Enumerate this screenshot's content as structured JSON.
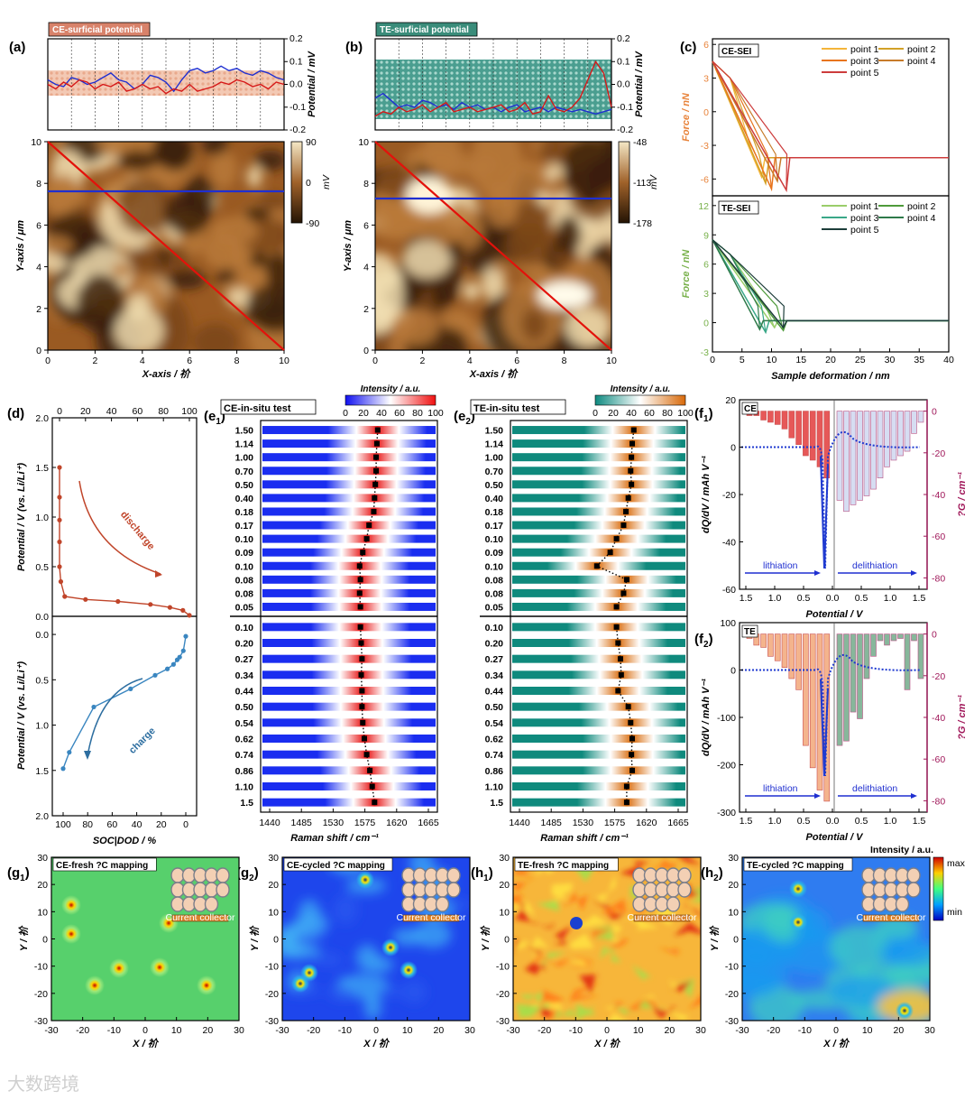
{
  "panels": {
    "a": "(a)",
    "b": "(b)",
    "c": "(c)",
    "d": "(d)",
    "e1": "(e",
    "e1s": "1",
    "e2": "(e",
    "e2s": "2",
    "f1": "(f",
    "f1s": "1",
    "f2": "(f",
    "f2s": "2",
    "g1": "(g",
    "g1s": "1",
    "g2": "(g",
    "g2s": "2",
    "h1": "(h",
    "h1s": "1",
    "h2": "(h",
    "h2s": "2"
  },
  "colors": {
    "ce": "#e8833a",
    "te": "#79b14c",
    "blue": "#1f2fd0",
    "red": "#d61818",
    "maroon": "#a0185a"
  },
  "chart_data": [
    {
      "id": "a",
      "type": "line",
      "tag": "CE-surficial potential",
      "ylabel": "Potential / mV",
      "ylim": [
        -0.2,
        0.2
      ],
      "yticks": [
        "0.2",
        "0.1",
        "0.0",
        "-0.1",
        "-0.2"
      ],
      "map": {
        "xlabel": "X-axis / 祄",
        "ylabel": "Y-axis / μm",
        "xticks": [
          "0",
          "2",
          "4",
          "6",
          "8",
          "10"
        ],
        "yticks": [
          "10",
          "8",
          "6",
          "4",
          "2",
          "0"
        ],
        "colorbar": {
          "unit": "mV",
          "labels": [
            "90",
            "0",
            "-90"
          ]
        }
      },
      "series": [
        {
          "name": "blue",
          "values": [
            0.02,
            0.0,
            -0.01,
            0.03,
            0.02,
            0.0,
            0.01,
            0.03,
            0.05,
            0.02,
            0.01,
            -0.02,
            0.0,
            0.04,
            0.03,
            0.01,
            -0.03,
            0.02,
            0.06,
            0.07,
            0.05,
            0.06,
            0.08,
            0.06,
            0.07,
            0.05,
            0.04,
            0.06,
            0.05,
            0.03,
            0.02
          ]
        },
        {
          "name": "red",
          "values": [
            0.0,
            -0.02,
            0.01,
            -0.01,
            0.02,
            0.01,
            -0.02,
            0.0,
            -0.01,
            0.01,
            -0.03,
            -0.02,
            0.0,
            -0.02,
            -0.01,
            -0.04,
            -0.02,
            -0.03,
            0.0,
            -0.03,
            -0.02,
            -0.01,
            0.01,
            0.0,
            0.02,
            0.01,
            -0.01,
            0.0,
            -0.02,
            0.01,
            0.0
          ]
        }
      ]
    },
    {
      "id": "b",
      "type": "line",
      "tag": "TE-surficial potential",
      "ylabel": "Potential / mV",
      "ylim": [
        -0.2,
        0.2
      ],
      "yticks": [
        "0.2",
        "0.1",
        "0.0",
        "-0.1",
        "-0.2"
      ],
      "map": {
        "xlabel": "X-axis / 祄",
        "ylabel": "Y-axis / μm",
        "xticks": [
          "0",
          "2",
          "4",
          "6",
          "8",
          "10"
        ],
        "yticks": [
          "10",
          "8",
          "6",
          "4",
          "2",
          "0"
        ],
        "colorbar": {
          "unit": "mV",
          "labels": [
            "-48",
            "-113",
            "-178"
          ]
        }
      },
      "series": [
        {
          "name": "blue",
          "values": [
            -0.06,
            -0.04,
            -0.07,
            -0.1,
            -0.09,
            -0.1,
            -0.07,
            -0.08,
            -0.1,
            -0.09,
            -0.11,
            -0.08,
            -0.1,
            -0.09,
            -0.11,
            -0.1,
            -0.12,
            -0.1,
            -0.09,
            -0.12,
            -0.11,
            -0.1,
            -0.12,
            -0.1,
            -0.11,
            -0.12,
            -0.11,
            -0.12,
            -0.13,
            -0.12,
            -0.11
          ]
        },
        {
          "name": "red",
          "values": [
            -0.14,
            -0.12,
            -0.13,
            -0.1,
            -0.12,
            -0.11,
            -0.09,
            -0.12,
            -0.1,
            -0.08,
            -0.12,
            -0.11,
            -0.1,
            -0.12,
            -0.11,
            -0.1,
            -0.09,
            -0.12,
            -0.11,
            -0.08,
            -0.13,
            -0.12,
            -0.05,
            -0.11,
            -0.12,
            -0.1,
            -0.06,
            0.02,
            0.1,
            0.05,
            -0.1
          ]
        }
      ]
    },
    {
      "id": "c",
      "type": "line",
      "xlabel": "Sample deformation / nm",
      "xlim": [
        0,
        40
      ],
      "xticks": [
        "0",
        "5",
        "10",
        "15",
        "20",
        "25",
        "30",
        "35",
        "40"
      ],
      "top": {
        "tag": "CE-SEI",
        "ylabel": "Force / nN",
        "yticks": [
          "6",
          "3",
          "0",
          "-3",
          "-6"
        ],
        "ylim": [
          -7.5,
          6.5
        ],
        "legend": [
          "point 1",
          "point 2",
          "point 3",
          "point 4",
          "point 5"
        ],
        "dips": [
          8.3,
          9.0,
          10.0,
          11.0,
          12.5
        ],
        "mins": [
          -5.8,
          -6.4,
          -6.9,
          -6.2,
          -7.0
        ]
      },
      "bottom": {
        "tag": "TE-SEI",
        "ylabel": "Force / nN",
        "yticks": [
          "12",
          "9",
          "6",
          "3",
          "0",
          "-3"
        ],
        "ylim": [
          -3,
          13
        ],
        "legend": [
          "point 1",
          "point 2",
          "point 3",
          "point 4",
          "point 5"
        ],
        "dips": [
          10.5,
          12.0,
          9.0,
          8.0,
          12.0
        ],
        "mins": [
          -0.5,
          -0.8,
          -1.0,
          -0.7,
          -0.5
        ]
      }
    },
    {
      "id": "d",
      "type": "line",
      "xlabel": "SOC|DOD / %",
      "ylabel": "Potential / V (vs. Li/Li⁺)",
      "top_xticks": [
        "0",
        "20",
        "40",
        "60",
        "80",
        "100"
      ],
      "top_yticks": [
        "2.0",
        "1.5",
        "1.0",
        "0.5",
        "0.0"
      ],
      "bottom_xticks": [
        "100",
        "80",
        "60",
        "40",
        "20",
        "0"
      ],
      "bottom_yticks": [
        "0.0",
        "0.5",
        "1.0",
        "1.5",
        "2.0"
      ],
      "discharge_label": "discharge",
      "charge_label": "charge",
      "discharge": {
        "x": [
          0,
          0,
          0,
          0,
          0,
          1,
          4,
          20,
          45,
          70,
          85,
          95,
          100
        ],
        "y": [
          1.5,
          1.2,
          0.97,
          0.75,
          0.5,
          0.35,
          0.2,
          0.17,
          0.15,
          0.12,
          0.09,
          0.06,
          0.01
        ]
      },
      "charge": {
        "x": [
          0,
          2,
          5,
          7,
          10,
          15,
          25,
          45,
          75,
          95,
          100
        ],
        "y": [
          0.02,
          0.18,
          0.25,
          0.28,
          0.33,
          0.38,
          0.45,
          0.6,
          0.8,
          1.3,
          1.48
        ]
      }
    },
    {
      "id": "e1",
      "type": "heatmap",
      "tag": "CE-in-situ test",
      "colorbar_title": "Intensity / a.u.",
      "colorbar_ticks": [
        "0",
        "20",
        "40",
        "60",
        "80",
        "100"
      ],
      "xlabel": "Raman shift / cm⁻¹",
      "xticks": [
        "1440",
        "1485",
        "1530",
        "1575",
        "1620",
        "1665"
      ],
      "xlim": [
        1440,
        1665
      ],
      "top_rows": [
        "1.50",
        "1.14",
        "1.00",
        "0.70",
        "0.50",
        "0.40",
        "0.18",
        "0.17",
        "0.10",
        "0.09",
        "0.10",
        "0.08",
        "0.08",
        "0.05"
      ],
      "top_peaks": [
        1589,
        1588,
        1587,
        1587,
        1586,
        1585,
        1584,
        1578,
        1575,
        1570,
        1566,
        1567,
        1566,
        1567
      ],
      "bottom_rows": [
        "0.10",
        "0.20",
        "0.27",
        "0.34",
        "0.44",
        "0.50",
        "0.54",
        "0.62",
        "0.74",
        "0.86",
        "1.10",
        "1.5"
      ],
      "bottom_peaks": [
        1567,
        1568,
        1569,
        1568,
        1569,
        1569,
        1570,
        1572,
        1575,
        1579,
        1582,
        1585
      ]
    },
    {
      "id": "e2",
      "type": "heatmap",
      "tag": "TE-in-situ test",
      "colorbar_title": "Intensity / a.u.",
      "colorbar_ticks": [
        "0",
        "20",
        "40",
        "60",
        "80",
        "100"
      ],
      "xlabel": "Raman shift / cm⁻¹",
      "xticks": [
        "1440",
        "1485",
        "1530",
        "1575",
        "1620",
        "1665"
      ],
      "xlim": [
        1440,
        1665
      ],
      "top_rows": [
        "1.50",
        "1.14",
        "1.00",
        "0.70",
        "0.50",
        "0.40",
        "0.18",
        "0.17",
        "0.10",
        "0.09",
        "0.10",
        "0.08",
        "0.08",
        "0.05"
      ],
      "top_peaks": [
        1597,
        1595,
        1594,
        1593,
        1594,
        1590,
        1587,
        1584,
        1575,
        1567,
        1550,
        1588,
        1584,
        1575
      ],
      "bottom_rows": [
        "0.10",
        "0.20",
        "0.27",
        "0.34",
        "0.44",
        "0.50",
        "0.54",
        "0.62",
        "0.74",
        "0.86",
        "1.10",
        "1.5"
      ],
      "bottom_peaks": [
        1575,
        1577,
        1580,
        1581,
        1577,
        1590,
        1593,
        1595,
        1594,
        1595,
        1588,
        1588
      ]
    },
    {
      "id": "f1",
      "type": "bar",
      "tag": "CE",
      "ylabel": "dQ/dV / mAh V⁻¹",
      "ylabel2": "?G / cm⁻¹",
      "xlabel": "Potential / V",
      "yticks": [
        "20",
        "0",
        "-20",
        "-40",
        "-60"
      ],
      "yticks2": [
        "0",
        "-20",
        "-40",
        "-60",
        "-80"
      ],
      "xticks": [
        "1.5",
        "1.0",
        "0.5",
        "0.0",
        "0.5",
        "1.0",
        "1.5"
      ],
      "lith": "lithiation",
      "delith": "delithiation",
      "lith_bars": [
        -2,
        -2,
        -4,
        -5,
        -6,
        -8,
        -12,
        -15,
        -20,
        -22,
        -25,
        -30
      ],
      "delith_bars": [
        -40,
        -45,
        -42,
        -40,
        -38,
        -35,
        -30,
        -25,
        -22,
        -20,
        -18,
        -10,
        -5
      ]
    },
    {
      "id": "f2",
      "type": "bar",
      "tag": "TE",
      "ylabel": "dQ/dV / mAh V⁻¹",
      "ylabel2": "?G / cm⁻¹",
      "xlabel": "Potential / V",
      "yticks": [
        "100",
        "0",
        "-100",
        "-200",
        "-300"
      ],
      "yticks2": [
        "0",
        "-20",
        "-40",
        "-60",
        "-80"
      ],
      "xticks": [
        "1.5",
        "1.0",
        "0.5",
        "0.0",
        "0.5",
        "1.0",
        "1.5"
      ],
      "lith": "lithiation",
      "delith": "delithiation",
      "lith_bars": [
        -2,
        -5,
        -6,
        -10,
        -12,
        -15,
        -20,
        -25,
        -50,
        -60,
        -70,
        -75
      ],
      "delith_bars": [
        -50,
        -48,
        -35,
        -38,
        -20,
        -10,
        -3,
        -5,
        -3,
        -2,
        -25,
        -3,
        -20
      ]
    },
    {
      "id": "g1",
      "type": "heatmap",
      "tag": "CE-fresh ?C mapping",
      "xlabel": "X / 祄",
      "ylabel": "Y / 祄",
      "xticks": [
        "-30",
        "-20",
        "-10",
        "0",
        "10",
        "20",
        "30"
      ],
      "yticks": [
        "30",
        "20",
        "10",
        "0",
        "-10",
        "-20",
        "-30"
      ],
      "collector": "Current collector"
    },
    {
      "id": "g2",
      "type": "heatmap",
      "tag": "CE-cycled ?C mapping",
      "xlabel": "X / 祄",
      "ylabel": "Y / 祄",
      "xticks": [
        "-30",
        "-20",
        "-10",
        "0",
        "10",
        "20",
        "30"
      ],
      "yticks": [
        "30",
        "20",
        "10",
        "0",
        "-10",
        "-20",
        "-30"
      ],
      "collector": "Current collector"
    },
    {
      "id": "h1",
      "type": "heatmap",
      "tag": "TE-fresh ?C mapping",
      "xlabel": "X / 祄",
      "ylabel": "Y / 祄",
      "xticks": [
        "-30",
        "-20",
        "-10",
        "0",
        "10",
        "20",
        "30"
      ],
      "yticks": [
        "30",
        "20",
        "10",
        "0",
        "-10",
        "-20",
        "-30"
      ],
      "collector": "Current collector"
    },
    {
      "id": "h2",
      "type": "heatmap",
      "tag": "TE-cycled ?C mapping",
      "xlabel": "X / 祄",
      "ylabel": "Y / 祄",
      "xticks": [
        "-30",
        "-20",
        "-10",
        "0",
        "10",
        "20",
        "30"
      ],
      "yticks": [
        "30",
        "20",
        "10",
        "0",
        "-10",
        "-20",
        "-30"
      ],
      "collector": "Current collector",
      "colorbar_title": "Intensity / a.u.",
      "colorbar_max": "max",
      "colorbar_min": "min"
    }
  ],
  "watermark": "大数跨境"
}
